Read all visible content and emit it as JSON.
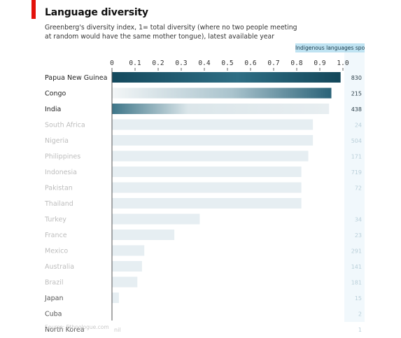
{
  "header": {
    "title": "Language diversity",
    "subtitle_line1": "Greenberg's diversity index, 1= total diversity (where no two people meeting",
    "subtitle_line2": "at random would have the same mother tongue), latest available year",
    "languages_header": "Indigenous languages spoken"
  },
  "source": "Source: Ethnologue.com",
  "colors": {
    "accent_red": "#e3120b",
    "bar_dark": "#1f5a6e",
    "bar_light": "#e6eef2",
    "lang_highlight": "#bfe3f2"
  },
  "chart_data": {
    "type": "bar",
    "orientation": "horizontal",
    "title": "Language diversity",
    "xlim": [
      0,
      1
    ],
    "x_ticks": [
      "0",
      "0.1",
      "0.2",
      "0.3",
      "0.4",
      "0.5",
      "0.6",
      "0.7",
      "0.8",
      "0.9",
      "1.0"
    ],
    "grid": false,
    "categories": [
      "Papua New Guinea",
      "Congo",
      "India",
      "South Africa",
      "Nigeria",
      "Philippines",
      "Indonesia",
      "Pakistan",
      "Thailand",
      "Turkey",
      "France",
      "Mexico",
      "Australia",
      "Brazil",
      "Japan",
      "Cuba",
      "North Korea"
    ],
    "values": [
      0.99,
      0.95,
      0.94,
      0.87,
      0.87,
      0.85,
      0.82,
      0.82,
      0.82,
      0.38,
      0.27,
      0.14,
      0.13,
      0.11,
      0.03,
      0.0,
      0.0
    ],
    "languages_spoken": [
      "830",
      "215",
      "438",
      "24",
      "504",
      "171",
      "719",
      "72",
      "",
      "34",
      "23",
      "291",
      "141",
      "181",
      "15",
      "2",
      "1"
    ],
    "value_labels": [
      "",
      "",
      "",
      "",
      "",
      "",
      "",
      "",
      "",
      "",
      "",
      "",
      "",
      "",
      "",
      "",
      "nil"
    ]
  }
}
